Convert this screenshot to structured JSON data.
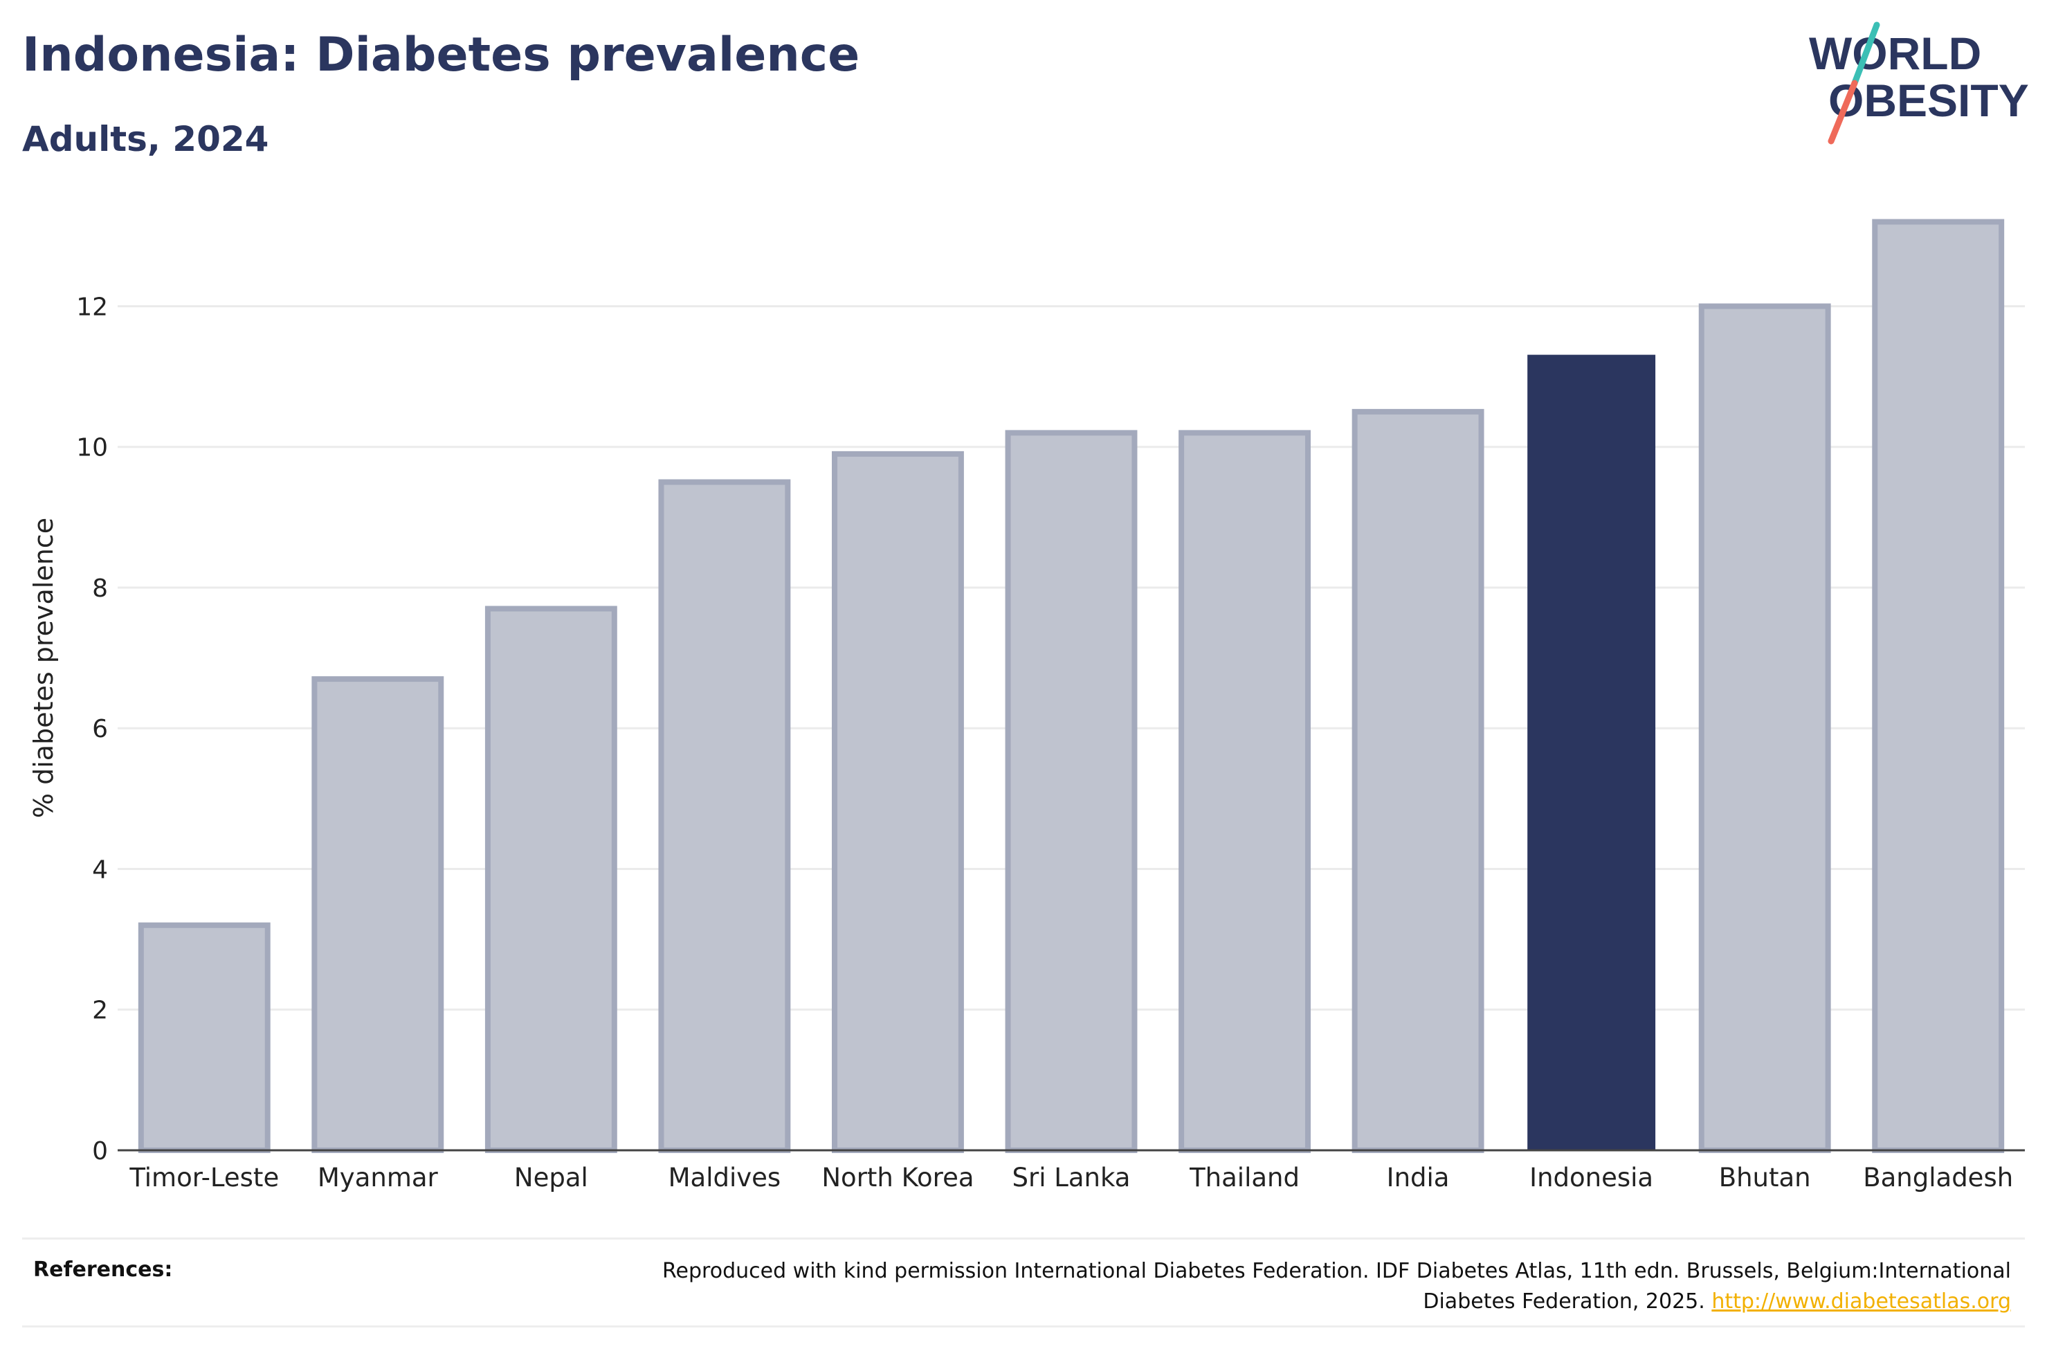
{
  "header": {
    "title": "Indonesia: Diabetes prevalence",
    "subtitle": "Adults, 2024"
  },
  "logo": {
    "line1": "WORLD",
    "line2": "OBESITY",
    "text_color": "#2b365f",
    "slash_top_color": "#3bbfb5",
    "slash_bottom_color": "#ef6a5a"
  },
  "colors": {
    "highlight_bar": "#2b365f",
    "other_bar_fill": "#bfc3cf",
    "other_bar_stroke": "#a3a9bc",
    "gridline": "#ebebeb",
    "axis": "#444444"
  },
  "chart_data": {
    "type": "bar",
    "categories": [
      "Timor-Leste",
      "Myanmar",
      "Nepal",
      "Maldives",
      "North Korea",
      "Sri Lanka",
      "Thailand",
      "India",
      "Indonesia",
      "Bhutan",
      "Bangladesh"
    ],
    "values": [
      3.2,
      6.7,
      7.7,
      9.5,
      9.9,
      10.2,
      10.2,
      10.5,
      11.3,
      12.0,
      13.2
    ],
    "highlight": "Indonesia",
    "title": "Indonesia: Diabetes prevalence",
    "subtitle": "Adults, 2024",
    "xlabel": "",
    "ylabel": "% diabetes prevalence",
    "ylim": [
      0,
      13.5
    ],
    "yticks": [
      0,
      2,
      4,
      6,
      8,
      10,
      12
    ],
    "grid": true,
    "legend": "none"
  },
  "references": {
    "label": "References:",
    "text": "Reproduced with kind permission International Diabetes Federation. IDF Diabetes Atlas, 11th edn. Brussels, Belgium:International Diabetes Federation, 2025.",
    "link_text": "http://www.diabetesatlas.org"
  }
}
